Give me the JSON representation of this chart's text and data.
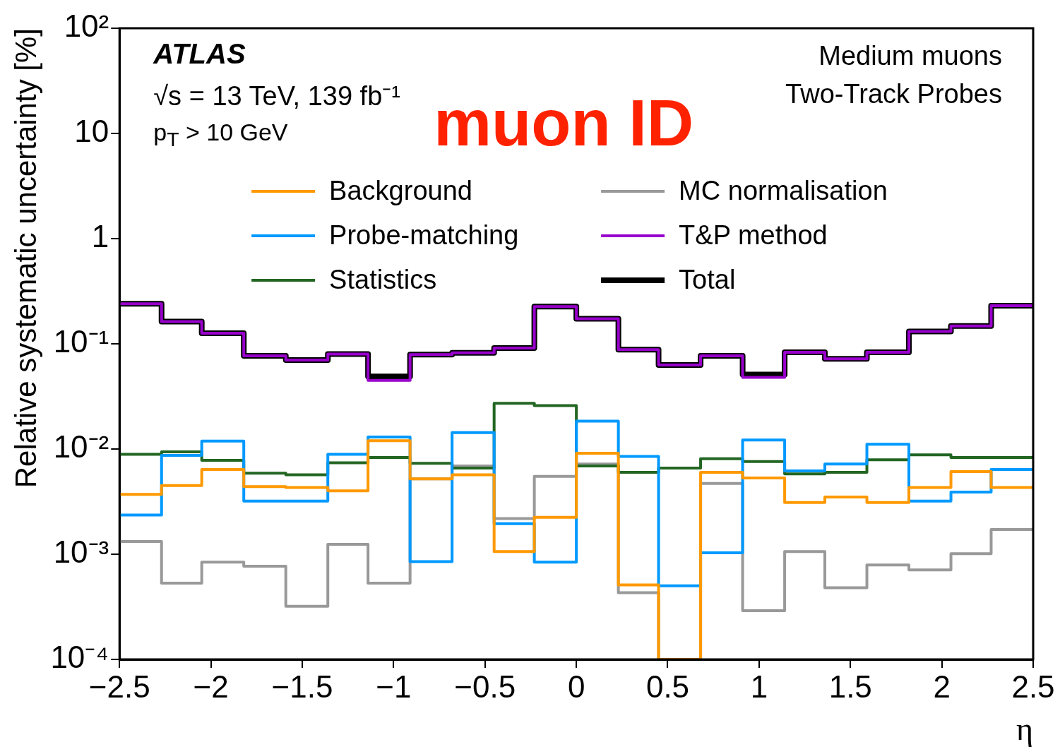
{
  "chart_data": {
    "type": "histogram",
    "xlabel": "η",
    "ylabel": "Relative systematic uncertainty [%]",
    "annotations": [
      "ATLAS",
      "√s = 13 TeV, 139 fb⁻¹",
      "p$_{T}$ > 10 GeV",
      "Medium muons",
      "Two-Track Probes",
      "muon ID"
    ],
    "bins": [
      -2.5,
      -2.27,
      -2.05,
      -1.82,
      -1.59,
      -1.36,
      -1.14,
      -0.91,
      -0.68,
      -0.45,
      -0.23,
      0,
      0.23,
      0.45,
      0.68,
      0.91,
      1.14,
      1.36,
      1.59,
      1.82,
      2.05,
      2.27,
      2.5
    ],
    "series": [
      {
        "name": "Background",
        "color": "#ff9900",
        "values": [
          0.0037,
          0.0045,
          0.0064,
          0.0044,
          0.0043,
          0.004,
          0.012,
          0.0052,
          0.0057,
          0.00106,
          0.00224,
          0.0091,
          0.00051,
          0.0001,
          0.006,
          0.0053,
          0.0031,
          0.0035,
          0.0031,
          0.0043,
          0.0061,
          0.0043
        ]
      },
      {
        "name": "Probe-matching",
        "color": "#0099ff",
        "values": [
          0.00236,
          0.0087,
          0.0119,
          0.0032,
          0.0032,
          0.0089,
          0.013,
          0.00085,
          0.0143,
          0.00195,
          0.00084,
          0.0184,
          0.0085,
          0.0005,
          0.00103,
          0.0122,
          0.0062,
          0.0072,
          0.0111,
          0.0032,
          0.0039,
          0.0064
        ]
      },
      {
        "name": "Statistics",
        "color": "#226622",
        "values": [
          0.0089,
          0.0094,
          0.0078,
          0.0059,
          0.0057,
          0.0074,
          0.0083,
          0.0073,
          0.0066,
          0.0272,
          0.0259,
          0.0069,
          0.006,
          0.0066,
          0.0081,
          0.0076,
          0.0058,
          0.006,
          0.0079,
          0.0088,
          0.0083,
          0.0083
        ]
      },
      {
        "name": "MC normalisation",
        "color": "#999999",
        "values": [
          0.00132,
          0.00053,
          0.00084,
          0.00077,
          0.00032,
          0.00124,
          0.00053,
          0.0052,
          0.0069,
          0.00218,
          0.0055,
          0.0072,
          0.00043,
          0.0001,
          0.0047,
          0.00029,
          0.00106,
          0.00048,
          0.00079,
          0.00071,
          0.00101,
          0.00172
        ]
      },
      {
        "name": "T&P method",
        "color": "#9900cc",
        "values": [
          0.24,
          0.163,
          0.126,
          0.077,
          0.07,
          0.08,
          0.045,
          0.079,
          0.082,
          0.091,
          0.226,
          0.173,
          0.088,
          0.063,
          0.077,
          0.048,
          0.083,
          0.072,
          0.083,
          0.131,
          0.148,
          0.23
        ]
      },
      {
        "name": "Total",
        "color": "#000000",
        "values": [
          0.24,
          0.163,
          0.126,
          0.077,
          0.07,
          0.08,
          0.049,
          0.079,
          0.082,
          0.091,
          0.226,
          0.173,
          0.088,
          0.063,
          0.077,
          0.051,
          0.083,
          0.072,
          0.083,
          0.131,
          0.148,
          0.23
        ]
      }
    ],
    "xlim": [
      -2.5,
      2.5
    ],
    "xticks": [
      {
        "value": -2.5,
        "label": "−2.5"
      },
      {
        "value": -2,
        "label": "−2"
      },
      {
        "value": -1.5,
        "label": "−1.5"
      },
      {
        "value": -1,
        "label": "−1"
      },
      {
        "value": -0.5,
        "label": "−0.5"
      },
      0,
      0.5,
      1,
      1.5,
      2,
      2.5
    ],
    "ylim": [
      0.0001,
      100
    ],
    "yticks": [
      {
        "value": 0.0001,
        "label": "10⁻⁴"
      },
      {
        "value": 0.001,
        "label": "10⁻³"
      },
      {
        "value": 0.01,
        "label": "10⁻²"
      },
      {
        "value": 0.1,
        "label": "10⁻¹"
      },
      1,
      10,
      {
        "value": 100,
        "label": "10²"
      }
    ],
    "log": true,
    "legend": "top",
    "grid": false,
    "marker": "none",
    "line_style": "solid"
  }
}
